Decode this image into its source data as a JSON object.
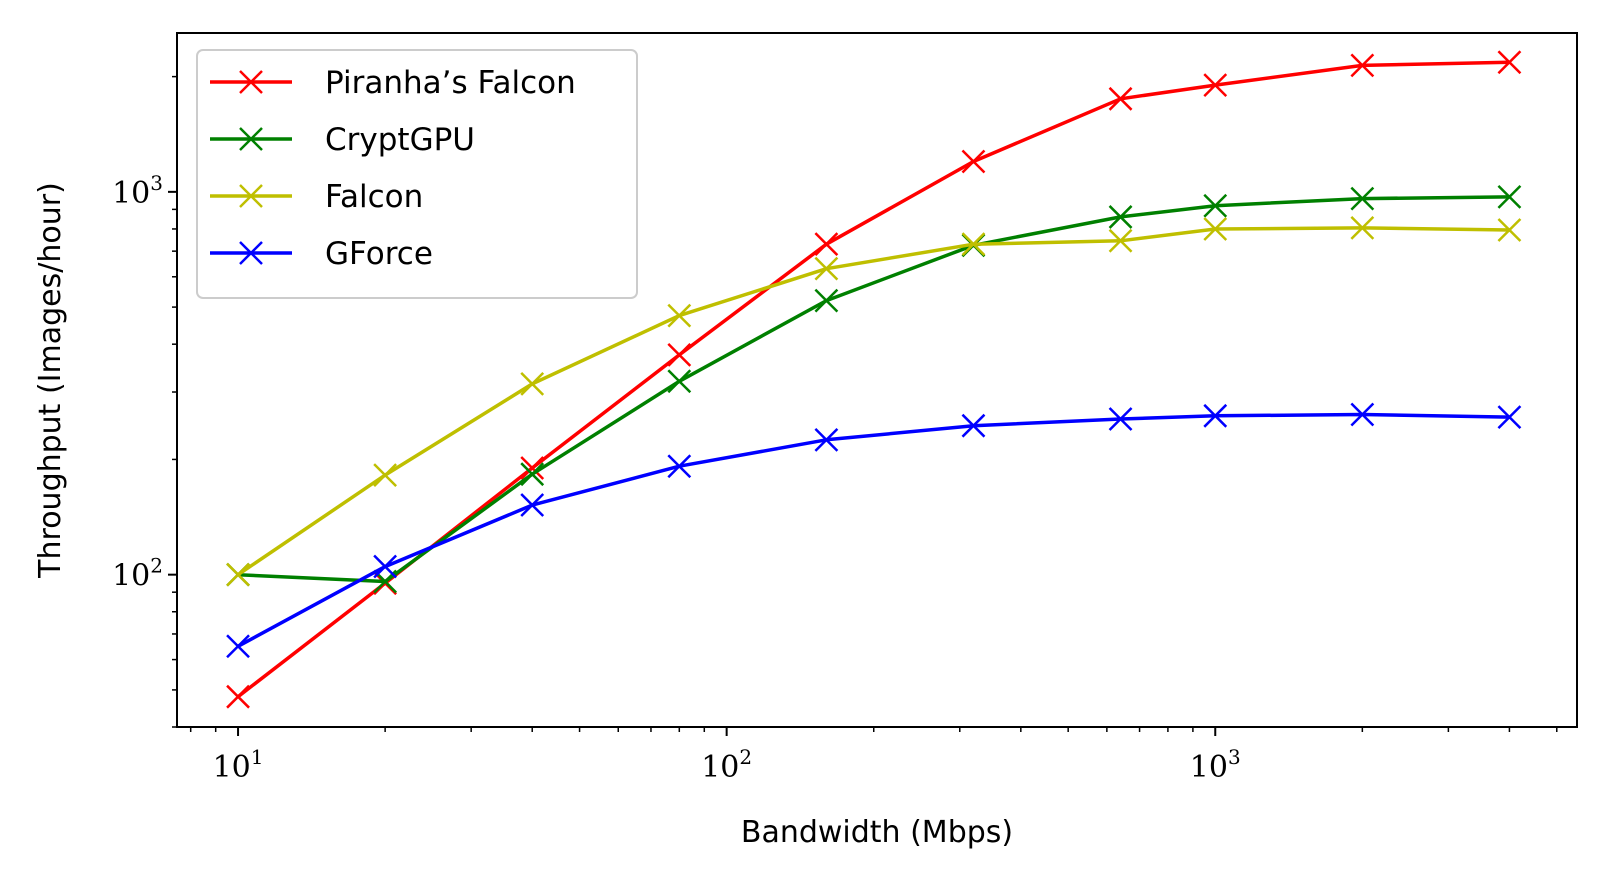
{
  "chart_data": {
    "type": "line",
    "title": "",
    "xlabel": "Bandwidth (Mbps)",
    "ylabel": "Throughput (Images/hour)",
    "xscale": "log",
    "yscale": "log",
    "xlim": [
      7.5,
      5500
    ],
    "ylim": [
      40,
      2600
    ],
    "x_ticks": [
      {
        "base": "10",
        "exp": "1",
        "value": 10
      },
      {
        "base": "10",
        "exp": "2",
        "value": 100
      },
      {
        "base": "10",
        "exp": "3",
        "value": 1000
      }
    ],
    "y_ticks": [
      {
        "base": "10",
        "exp": "2",
        "value": 100
      },
      {
        "base": "10",
        "exp": "3",
        "value": 1000
      }
    ],
    "grid": false,
    "legend_position": "top-left",
    "marker": "x",
    "x": [
      10,
      20,
      40,
      80,
      160,
      320,
      640,
      1000,
      2000,
      4000
    ],
    "series": [
      {
        "name": "Piranha’s Falcon",
        "color": "#ff0000",
        "values": [
          48,
          95,
          190,
          375,
          730,
          1200,
          1750,
          1900,
          2140,
          2180
        ]
      },
      {
        "name": "CryptGPU",
        "color": "#008000",
        "values": [
          100,
          96,
          183,
          320,
          520,
          725,
          860,
          920,
          960,
          970
        ]
      },
      {
        "name": "Falcon",
        "color": "#bfbf00",
        "values": [
          100,
          182,
          315,
          475,
          630,
          730,
          745,
          800,
          805,
          795
        ]
      },
      {
        "name": "GForce",
        "color": "#0000ff",
        "values": [
          65,
          105,
          152,
          192,
          225,
          245,
          255,
          260,
          262,
          258
        ]
      }
    ]
  }
}
